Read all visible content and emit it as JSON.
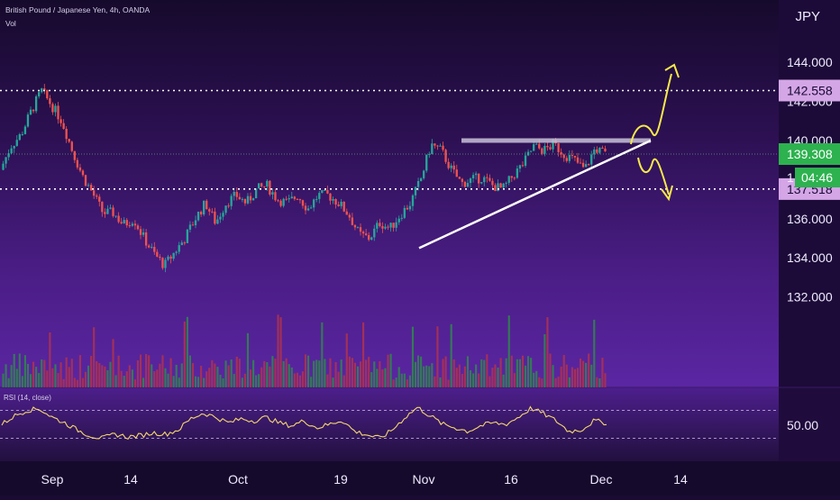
{
  "header": {
    "symbol_title": "British Pound / Japanese Yen, 4h, OANDA",
    "vol_label": "Vol",
    "currency": "JPY"
  },
  "chart_data": {
    "type": "candlestick",
    "price_axis": {
      "ticks": [
        "144.000",
        "142.000",
        "140.000",
        "136.000",
        "134.000",
        "132.000"
      ],
      "tick_values": [
        144,
        142,
        140,
        136,
        134,
        132
      ],
      "range": [
        130.7,
        144.6
      ]
    },
    "x_axis": {
      "labels": [
        "Sep",
        "14",
        "Oct",
        "19",
        "Nov",
        "16",
        "Dec",
        "14"
      ]
    },
    "price_labels": {
      "top_level": "142.558",
      "current_price": "139.308",
      "countdown": "04:46",
      "bottom_level": "137.518",
      "hidden_tick": "1"
    },
    "annotations": {
      "resistance_level": 140,
      "horizontal_levels": [
        142.558,
        137.518
      ],
      "trendline": {
        "from": 134.5,
        "to": 140.0
      },
      "scenario_arrows": [
        "breakout-up",
        "breakdown-down"
      ]
    },
    "price_path": [
      {
        "p": 138.5
      },
      {
        "p": 139.7
      },
      {
        "p": 140.3
      },
      {
        "p": 141.5
      },
      {
        "p": 142.55
      },
      {
        "p": 141.8
      },
      {
        "p": 141.0
      },
      {
        "p": 139.5
      },
      {
        "p": 138.2
      },
      {
        "p": 137.3
      },
      {
        "p": 136.3
      },
      {
        "p": 136.3
      },
      {
        "p": 135.7
      },
      {
        "p": 136.0
      },
      {
        "p": 135.0
      },
      {
        "p": 134.2
      },
      {
        "p": 133.6
      },
      {
        "p": 134.3
      },
      {
        "p": 135.0
      },
      {
        "p": 136.0
      },
      {
        "p": 136.8
      },
      {
        "p": 135.8
      },
      {
        "p": 136.8
      },
      {
        "p": 137.2
      },
      {
        "p": 136.8
      },
      {
        "p": 137.5
      },
      {
        "p": 137.7
      },
      {
        "p": 137.0
      },
      {
        "p": 136.8
      },
      {
        "p": 137.2
      },
      {
        "p": 136.5
      },
      {
        "p": 137.2
      },
      {
        "p": 137.2
      },
      {
        "p": 136.8
      },
      {
        "p": 136.2
      },
      {
        "p": 135.2
      },
      {
        "p": 135.0
      },
      {
        "p": 135.8
      },
      {
        "p": 135.5
      },
      {
        "p": 136.2
      },
      {
        "p": 136.8
      },
      {
        "p": 138.0
      },
      {
        "p": 139.8
      },
      {
        "p": 139.5
      },
      {
        "p": 138.5
      },
      {
        "p": 137.8
      },
      {
        "p": 138.0
      },
      {
        "p": 138.1
      },
      {
        "p": 137.7
      },
      {
        "p": 137.5
      },
      {
        "p": 138.2
      },
      {
        "p": 138.8
      },
      {
        "p": 139.7
      },
      {
        "p": 139.5
      },
      {
        "p": 139.8
      },
      {
        "p": 139.3
      },
      {
        "p": 139.0
      },
      {
        "p": 138.5
      },
      {
        "p": 139.6
      },
      {
        "p": 139.3
      }
    ],
    "rsi": {
      "label": "RSI (14, close)",
      "value_label": "50.00",
      "upper_band": 70,
      "lower_band": 30,
      "path": [
        {
          "v": 50
        },
        {
          "v": 62
        },
        {
          "v": 70
        },
        {
          "v": 72
        },
        {
          "v": 60
        },
        {
          "v": 52
        },
        {
          "v": 42
        },
        {
          "v": 34
        },
        {
          "v": 30
        },
        {
          "v": 36
        },
        {
          "v": 32
        },
        {
          "v": 34
        },
        {
          "v": 38
        },
        {
          "v": 36
        },
        {
          "v": 42
        },
        {
          "v": 58
        },
        {
          "v": 66
        },
        {
          "v": 60
        },
        {
          "v": 52
        },
        {
          "v": 58
        },
        {
          "v": 55
        },
        {
          "v": 60
        },
        {
          "v": 52
        },
        {
          "v": 48
        },
        {
          "v": 55
        },
        {
          "v": 45
        },
        {
          "v": 50
        },
        {
          "v": 56
        },
        {
          "v": 40
        },
        {
          "v": 35
        },
        {
          "v": 30
        },
        {
          "v": 42
        },
        {
          "v": 60
        },
        {
          "v": 74
        },
        {
          "v": 62
        },
        {
          "v": 50
        },
        {
          "v": 45
        },
        {
          "v": 40
        },
        {
          "v": 48
        },
        {
          "v": 52
        },
        {
          "v": 50
        },
        {
          "v": 60
        },
        {
          "v": 73
        },
        {
          "v": 65
        },
        {
          "v": 55
        },
        {
          "v": 40
        },
        {
          "v": 42
        },
        {
          "v": 55
        },
        {
          "v": 52
        }
      ]
    },
    "colors": {
      "up": "#26a69a",
      "down": "#ef5350",
      "volume_up": "#2e8a4b",
      "volume_down": "#b2334c",
      "annotation_yellow": "#f5e94a",
      "level_badge": "#d4a6e6",
      "current_badge": "#2db24f",
      "grid": "#ffffff"
    },
    "grid": false,
    "legend": "none"
  }
}
